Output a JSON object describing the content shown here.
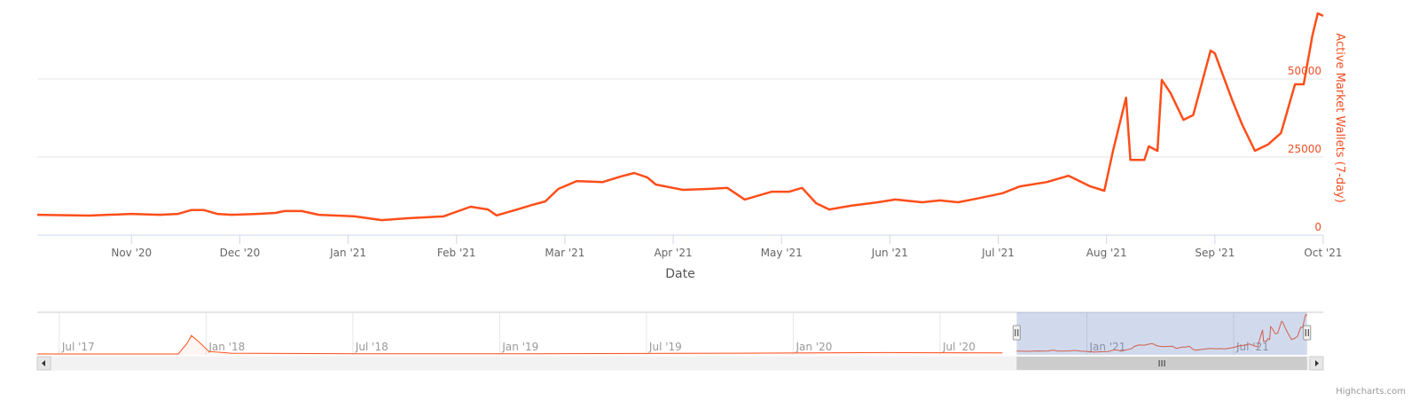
{
  "chart_data": {
    "type": "line",
    "x_title": "Date",
    "y_title": "Active Market Wallets (7-day)",
    "color": "#ff4e1a",
    "axis_color": "#f04e23",
    "grid": true,
    "xlim": [
      0.13,
      12
    ],
    "xticks": [
      {
        "value": 1,
        "label": "Nov '20"
      },
      {
        "value": 2,
        "label": "Dec '20"
      },
      {
        "value": 3,
        "label": "Jan '21"
      },
      {
        "value": 4,
        "label": "Feb '21"
      },
      {
        "value": 5,
        "label": "Mar '21"
      },
      {
        "value": 6,
        "label": "Apr '21"
      },
      {
        "value": 7,
        "label": "May '21"
      },
      {
        "value": 8,
        "label": "Jun '21"
      },
      {
        "value": 9,
        "label": "Jul '21"
      },
      {
        "value": 10,
        "label": "Aug '21"
      },
      {
        "value": 11,
        "label": "Sep '21"
      },
      {
        "value": 12,
        "label": "Oct '21"
      }
    ],
    "ylim": [
      0,
      75000
    ],
    "yticks": [
      0,
      25000,
      50000
    ],
    "x": [
      0.13,
      0.61,
      1.0,
      1.26,
      1.43,
      1.55,
      1.67,
      1.79,
      1.92,
      2.16,
      2.33,
      2.41,
      2.57,
      2.73,
      3.06,
      3.31,
      3.55,
      3.88,
      4.13,
      4.29,
      4.37,
      4.54,
      4.7,
      4.82,
      4.94,
      5.11,
      5.35,
      5.52,
      5.64,
      5.76,
      5.84,
      6.09,
      6.34,
      6.5,
      6.66,
      6.91,
      7.07,
      7.19,
      7.32,
      7.44,
      7.64,
      7.89,
      8.05,
      8.3,
      8.46,
      8.63,
      8.79,
      9.04,
      9.2,
      9.45,
      9.65,
      9.85,
      9.98,
      10.06,
      10.18,
      10.22,
      10.35,
      10.39,
      10.47,
      10.51,
      10.59,
      10.71,
      10.8,
      10.96,
      11.0,
      11.16,
      11.25,
      11.37,
      11.49,
      11.61,
      11.74,
      11.82,
      11.9,
      11.95,
      12.0
    ],
    "series": [
      {
        "name": "Active Market Wallets (7-day)",
        "color": "#ff4e1a",
        "values": [
          6500,
          6250,
          6800,
          6500,
          6800,
          8000,
          8000,
          6800,
          6500,
          6800,
          7100,
          7700,
          7700,
          6500,
          6000,
          4800,
          5400,
          6000,
          9100,
          8200,
          6300,
          8000,
          9700,
          10800,
          14800,
          17300,
          17000,
          18800,
          19900,
          18500,
          16200,
          14500,
          14800,
          15100,
          11400,
          13900,
          13900,
          15100,
          10200,
          8200,
          9400,
          10500,
          11400,
          10500,
          11100,
          10500,
          11600,
          13400,
          15600,
          17000,
          19000,
          15600,
          14200,
          27000,
          44000,
          24100,
          24100,
          28400,
          27000,
          49700,
          45500,
          36900,
          38400,
          59100,
          58200,
          43200,
          35500,
          27000,
          29000,
          32700,
          48300,
          48300,
          63900,
          71000,
          70200
        ]
      }
    ],
    "navigator": {
      "xlim": [
        -39.9,
        12.66
      ],
      "xticks": [
        {
          "value": -39,
          "label": "Jul '17"
        },
        {
          "value": -33,
          "label": "Jan '18"
        },
        {
          "value": -27,
          "label": "Jul '18"
        },
        {
          "value": -21,
          "label": "Jan '19"
        },
        {
          "value": -15,
          "label": "Jul '19"
        },
        {
          "value": -9,
          "label": "Jan '20"
        },
        {
          "value": -3,
          "label": "Jul '20"
        },
        {
          "value": 3,
          "label": "Jan '21"
        },
        {
          "value": 9,
          "label": "Jul '21"
        }
      ],
      "x": [
        -39.9,
        -34.14,
        -33.78,
        -33.6,
        -33.35,
        -32.88,
        -31.97,
        -26.9,
        -19.65,
        -11.3,
        -5.16,
        -0.45
      ],
      "values": [
        1500,
        1500,
        20000,
        34000,
        25000,
        6000,
        3000,
        2000,
        2000,
        3000,
        4000,
        3500
      ]
    },
    "credits": "Highcharts.com"
  }
}
